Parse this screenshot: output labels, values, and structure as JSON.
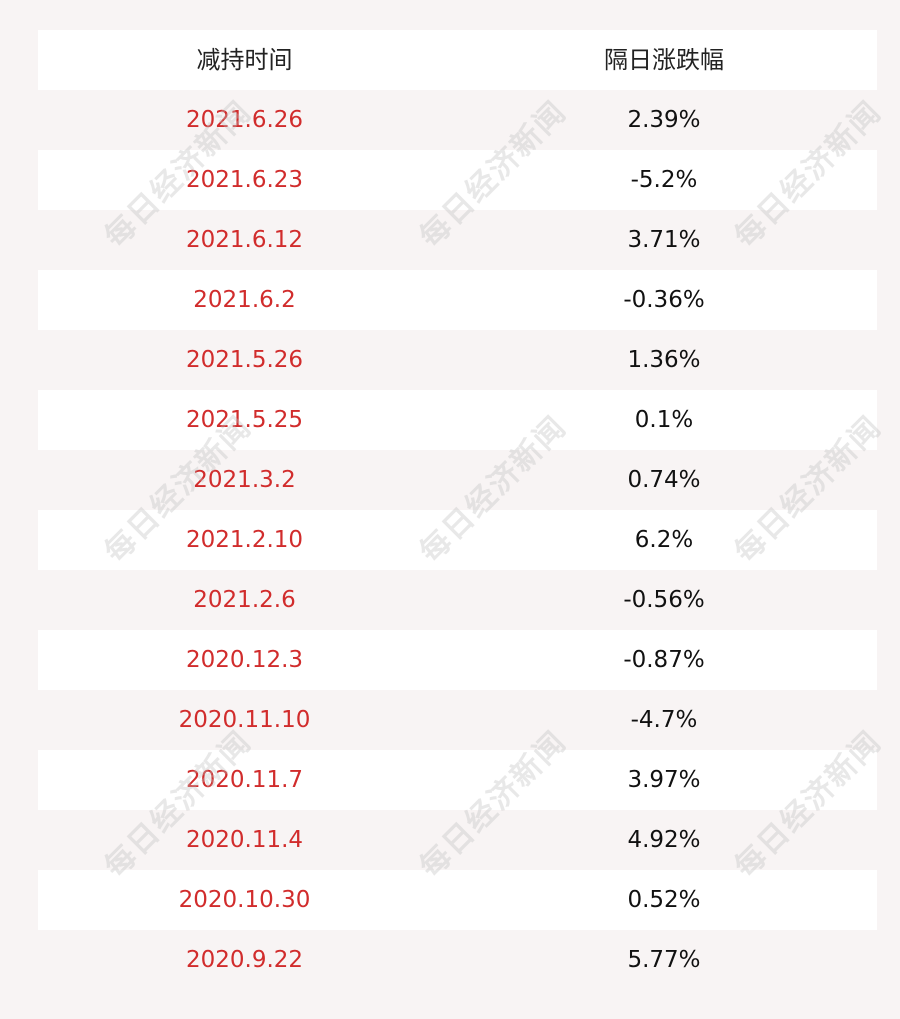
{
  "table": {
    "headers": [
      "减持时间",
      "隔日涨跌幅"
    ],
    "rows": [
      {
        "date": "2021.6.26",
        "change": "2.39%"
      },
      {
        "date": "2021.6.23",
        "change": "-5.2%"
      },
      {
        "date": "2021.6.12",
        "change": "3.71%"
      },
      {
        "date": "2021.6.2",
        "change": "-0.36%"
      },
      {
        "date": "2021.5.26",
        "change": "1.36%"
      },
      {
        "date": "2021.5.25",
        "change": "0.1%"
      },
      {
        "date": "2021.3.2",
        "change": "0.74%"
      },
      {
        "date": "2021.2.10",
        "change": "6.2%"
      },
      {
        "date": "2021.2.6",
        "change": "-0.56%"
      },
      {
        "date": "2020.12.3",
        "change": "-0.87%"
      },
      {
        "date": "2020.11.10",
        "change": "-4.7%"
      },
      {
        "date": "2020.11.7",
        "change": "3.97%"
      },
      {
        "date": "2020.11.4",
        "change": "4.92%"
      },
      {
        "date": "2020.10.30",
        "change": "0.52%"
      },
      {
        "date": "2020.9.22",
        "change": "5.77%"
      }
    ]
  },
  "watermark": {
    "text": "每日经济新闻"
  },
  "colors": {
    "date_text": "#d12c2c",
    "change_text": "#111111",
    "header_text": "#222222",
    "background": "#f8f4f4"
  }
}
